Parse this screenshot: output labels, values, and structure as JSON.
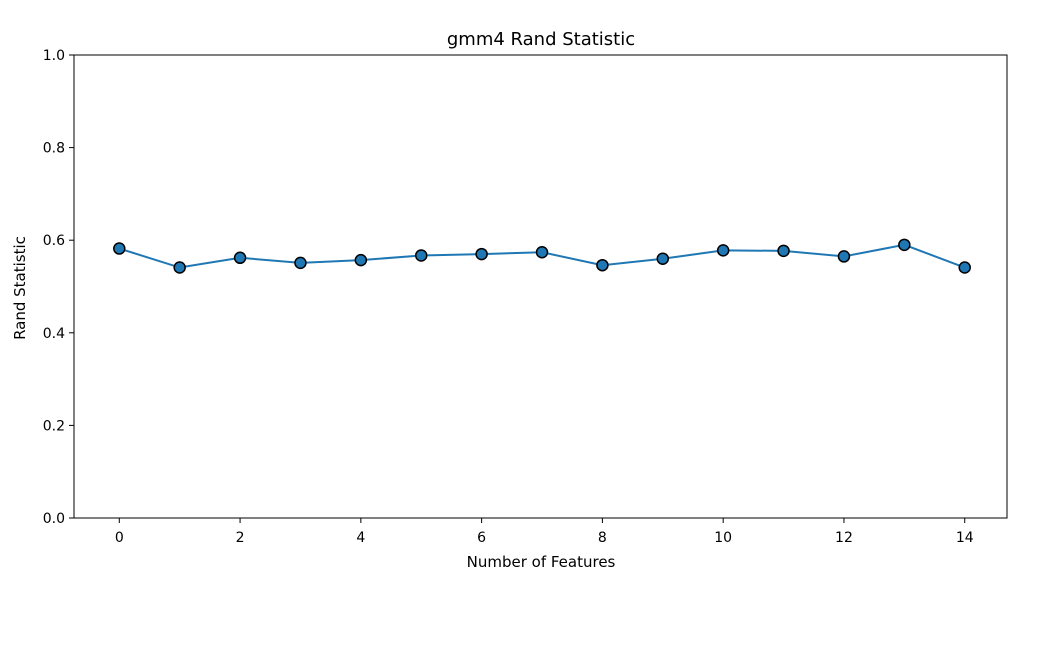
{
  "chart_data": {
    "type": "line",
    "title": "gmm4 Rand Statistic",
    "xlabel": "Number of Features",
    "ylabel": "Rand Statistic",
    "xlim": [
      -0.75,
      14.7
    ],
    "ylim": [
      0.0,
      1.0
    ],
    "xticks": [
      0,
      2,
      4,
      6,
      8,
      10,
      12,
      14
    ],
    "xtick_labels": [
      "0",
      "2",
      "4",
      "6",
      "8",
      "10",
      "12",
      "14"
    ],
    "yticks": [
      0.0,
      0.2,
      0.4,
      0.6,
      0.8,
      1.0
    ],
    "ytick_labels": [
      "0.0",
      "0.2",
      "0.4",
      "0.6",
      "0.8",
      "1.0"
    ],
    "grid": false,
    "series": [
      {
        "color": "#1f77b4",
        "marker": "circle",
        "x": [
          0,
          1,
          2,
          3,
          4,
          5,
          6,
          7,
          8,
          9,
          10,
          11,
          12,
          13,
          14
        ],
        "y": [
          0.582,
          0.541,
          0.562,
          0.551,
          0.557,
          0.567,
          0.57,
          0.574,
          0.546,
          0.56,
          0.578,
          0.577,
          0.565,
          0.59,
          0.541
        ]
      }
    ]
  }
}
